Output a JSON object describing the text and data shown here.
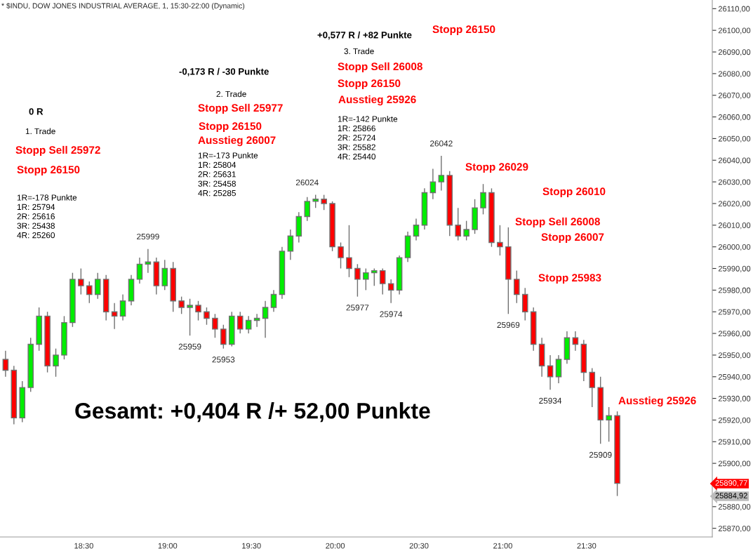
{
  "chart_data": {
    "type": "candlestick",
    "title": "* $INDU, DOW JONES INDUSTRIAL AVERAGE, 1, 15:30-22:00 (Dynamic)",
    "x": [
      18.033,
      18.083,
      18.133,
      18.183,
      18.233,
      18.283,
      18.333,
      18.383,
      18.433,
      18.483,
      18.533,
      18.583,
      18.633,
      18.683,
      18.733,
      18.783,
      18.833,
      18.883,
      18.933,
      18.983,
      19.033,
      19.083,
      19.133,
      19.183,
      19.233,
      19.283,
      19.333,
      19.383,
      19.433,
      19.483,
      19.533,
      19.583,
      19.633,
      19.683,
      19.733,
      19.783,
      19.833,
      19.883,
      19.933,
      19.983,
      20.033,
      20.083,
      20.133,
      20.183,
      20.233,
      20.283,
      20.333,
      20.383,
      20.433,
      20.483,
      20.533,
      20.583,
      20.633,
      20.683,
      20.733,
      20.783,
      20.833,
      20.883,
      20.933,
      20.983,
      21.033,
      21.083,
      21.133,
      21.183,
      21.233,
      21.283,
      21.333,
      21.383,
      21.433,
      21.483,
      21.533,
      21.583,
      21.633,
      21.683
    ],
    "ohlc": [
      [
        25948,
        25952,
        25940,
        25943
      ],
      [
        25943,
        25945,
        25918,
        25921
      ],
      [
        25921,
        25938,
        25919,
        25935
      ],
      [
        25935,
        25958,
        25933,
        25955
      ],
      [
        25955,
        25972,
        25952,
        25968
      ],
      [
        25968,
        25970,
        25942,
        25945
      ],
      [
        25945,
        25953,
        25940,
        25950
      ],
      [
        25950,
        25968,
        25948,
        25965
      ],
      [
        25965,
        25988,
        25963,
        25985
      ],
      [
        25985,
        25990,
        25978,
        25982
      ],
      [
        25982,
        25984,
        25974,
        25978
      ],
      [
        25978,
        25988,
        25976,
        25985
      ],
      [
        25985,
        25987,
        25966,
        25970
      ],
      [
        25970,
        25974,
        25962,
        25968
      ],
      [
        25968,
        25978,
        25966,
        25975
      ],
      [
        25975,
        25987,
        25973,
        25985
      ],
      [
        25985,
        25995,
        25983,
        25992
      ],
      [
        25992,
        25999,
        25988,
        25993
      ],
      [
        25993,
        25995,
        25978,
        25982
      ],
      [
        25982,
        25994,
        25980,
        25990
      ],
      [
        25990,
        25993,
        25970,
        25975
      ],
      [
        25975,
        25977,
        25969,
        25972
      ],
      [
        25972,
        25976,
        25959,
        25973
      ],
      [
        25973,
        25975,
        25966,
        25970
      ],
      [
        25970,
        25972,
        25964,
        25967
      ],
      [
        25967,
        25969,
        25958,
        25962
      ],
      [
        25962,
        25964,
        25953,
        25955
      ],
      [
        25955,
        25970,
        25954,
        25968
      ],
      [
        25968,
        25970,
        25960,
        25962
      ],
      [
        25962,
        25968,
        25960,
        25966
      ],
      [
        25966,
        25969,
        25963,
        25967
      ],
      [
        25967,
        25975,
        25958,
        25972
      ],
      [
        25972,
        25980,
        25970,
        25978
      ],
      [
        25978,
        26000,
        25976,
        25998
      ],
      [
        25998,
        26008,
        25994,
        26005
      ],
      [
        26005,
        26016,
        26002,
        26014
      ],
      [
        26014,
        26023,
        26012,
        26021
      ],
      [
        26021,
        26024,
        26018,
        26022
      ],
      [
        26022,
        26024,
        26017,
        26020
      ],
      [
        26020,
        26021,
        25998,
        26000
      ],
      [
        26000,
        26002,
        25990,
        25995
      ],
      [
        25995,
        26010,
        25986,
        25990
      ],
      [
        25990,
        25992,
        25977,
        25985
      ],
      [
        25985,
        25990,
        25980,
        25988
      ],
      [
        25988,
        25990,
        25982,
        25989
      ],
      [
        25989,
        25990,
        25978,
        25983
      ],
      [
        25983,
        25985,
        25974,
        25980
      ],
      [
        25980,
        25996,
        25978,
        25995
      ],
      [
        25995,
        26007,
        25993,
        26005
      ],
      [
        26005,
        26013,
        26003,
        26010
      ],
      [
        26010,
        26027,
        26008,
        26025
      ],
      [
        26025,
        26036,
        26022,
        26030
      ],
      [
        26030,
        26042,
        26026,
        26033
      ],
      [
        26033,
        26035,
        26005,
        26010
      ],
      [
        26010,
        26018,
        26003,
        26005
      ],
      [
        26005,
        26012,
        26003,
        26008
      ],
      [
        26008,
        26022,
        26006,
        26018
      ],
      [
        26018,
        26029,
        26015,
        26025
      ],
      [
        26025,
        26027,
        26000,
        26002
      ],
      [
        26002,
        26010,
        25996,
        26000
      ],
      [
        26000,
        26009,
        25969,
        25985
      ],
      [
        25985,
        25989,
        25974,
        25978
      ],
      [
        25978,
        25981,
        25966,
        25970
      ],
      [
        25970,
        25972,
        25952,
        25955
      ],
      [
        25955,
        25958,
        25940,
        25945
      ],
      [
        25945,
        25950,
        25934,
        25940
      ],
      [
        25940,
        25950,
        25937,
        25948
      ],
      [
        25948,
        25961,
        25946,
        25958
      ],
      [
        25958,
        25961,
        25952,
        25955
      ],
      [
        25955,
        25957,
        25938,
        25942
      ],
      [
        25942,
        25944,
        25926,
        25935
      ],
      [
        25935,
        25940,
        25909,
        25920
      ],
      [
        25920,
        25926,
        25910,
        25922
      ],
      [
        25922,
        25924,
        25884.92,
        25890.77
      ]
    ],
    "colors": [
      "#ff0000",
      "#ff0000",
      "#00ee00",
      "#00ee00",
      "#00ee00",
      "#ff0000",
      "#00ee00",
      "#00ee00",
      "#00ee00",
      "#ff0000",
      "#ff0000",
      "#00ee00",
      "#ff0000",
      "#ff0000",
      "#00ee00",
      "#00ee00",
      "#00ee00",
      "#00ee00",
      "#ff0000",
      "#00ee00",
      "#ff0000",
      "#ff0000",
      "#00ee00",
      "#ff0000",
      "#ff0000",
      "#ff0000",
      "#ff0000",
      "#00ee00",
      "#ff0000",
      "#00ee00",
      "#00ee00",
      "#00ee00",
      "#00ee00",
      "#00ee00",
      "#00ee00",
      "#00ee00",
      "#00ee00",
      "#00ee00",
      "#ff0000",
      "#ff0000",
      "#ff0000",
      "#ff0000",
      "#ff0000",
      "#00ee00",
      "#00ee00",
      "#ff0000",
      "#ff0000",
      "#00ee00",
      "#00ee00",
      "#00ee00",
      "#00ee00",
      "#00ee00",
      "#00ee00",
      "#ff0000",
      "#ff0000",
      "#00ee00",
      "#00ee00",
      "#00ee00",
      "#ff0000",
      "#ff0000",
      "#ff0000",
      "#ff0000",
      "#ff0000",
      "#ff0000",
      "#ff0000",
      "#ff0000",
      "#00ee00",
      "#00ee00",
      "#ff0000",
      "#ff0000",
      "#ff0000",
      "#ff0000",
      "#00ee00",
      "#ff0000"
    ],
    "xlim": [
      18.0,
      22.25
    ],
    "xticks": [
      {
        "value": 18.5,
        "label": "18:30"
      },
      {
        "value": 19.0,
        "label": "19:00"
      },
      {
        "value": 19.5,
        "label": "19:30"
      },
      {
        "value": 20.0,
        "label": "20:00"
      },
      {
        "value": 20.5,
        "label": "20:30"
      },
      {
        "value": 21.0,
        "label": "21:00"
      },
      {
        "value": 21.5,
        "label": "21:30"
      }
    ],
    "ylim": [
      25866,
      26114
    ],
    "yticks": [
      {
        "value": 25870,
        "label": "25870,00"
      },
      {
        "value": 25880,
        "label": "25880,00"
      },
      {
        "value": 25890,
        "label": null
      },
      {
        "value": 25900,
        "label": "25900,00"
      },
      {
        "value": 25910,
        "label": "25910,00"
      },
      {
        "value": 25920,
        "label": "25920,00"
      },
      {
        "value": 25930,
        "label": "25930,00"
      },
      {
        "value": 25940,
        "label": "25940,00"
      },
      {
        "value": 25950,
        "label": "25950,00"
      },
      {
        "value": 25960,
        "label": "25960,00"
      },
      {
        "value": 25970,
        "label": "25970,00"
      },
      {
        "value": 25980,
        "label": "25980,00"
      },
      {
        "value": 25990,
        "label": "25990,00"
      },
      {
        "value": 26000,
        "label": "26000,00"
      },
      {
        "value": 26010,
        "label": "26010,00"
      },
      {
        "value": 26020,
        "label": "26020,00"
      },
      {
        "value": 26030,
        "label": "26030,00"
      },
      {
        "value": 26040,
        "label": "26040,00"
      },
      {
        "value": 26050,
        "label": "26050,00"
      },
      {
        "value": 26060,
        "label": "26060,00"
      },
      {
        "value": 26070,
        "label": "26070,00"
      },
      {
        "value": 26080,
        "label": "26080,00"
      },
      {
        "value": 26090,
        "label": "26090,00"
      },
      {
        "value": 26100,
        "label": "26100,00"
      },
      {
        "value": 26110,
        "label": "26110,00"
      }
    ],
    "annotations": [
      {
        "text": "25999",
        "x": 18.883,
        "y": 25999
      },
      {
        "text": "25959",
        "x": 19.133,
        "y": 25959
      },
      {
        "text": "25953",
        "x": 19.333,
        "y": 25953
      },
      {
        "text": "26024",
        "x": 19.833,
        "y": 26024
      },
      {
        "text": "25977",
        "x": 20.133,
        "y": 25977
      },
      {
        "text": "25974",
        "x": 20.333,
        "y": 25974
      },
      {
        "text": "26042",
        "x": 20.633,
        "y": 26042
      },
      {
        "text": "25969",
        "x": 21.033,
        "y": 25969
      },
      {
        "text": "25934",
        "x": 21.283,
        "y": 25934
      },
      {
        "text": "25909",
        "x": 21.583,
        "y": 25909
      },
      "25890,77",
      "25884,92",
      "0 R",
      "1. Trade",
      "Stopp Sell 25972",
      "Stopp 26150",
      "1R=-178 Punkte\n1R: 25794\n2R: 25616\n3R: 25438\n4R: 25260",
      "-0,173 R / -30 Punkte",
      "2. Trade",
      "Stopp Sell 25977",
      "Stopp 26150",
      "Ausstieg 26007",
      "1R=-173 Punkte\n1R: 25804\n2R: 25631\n3R: 25458\n4R: 25285",
      "+0,577 R / +82 Punkte",
      "Stopp 26150",
      "3. Trade",
      "Stopp Sell 26008",
      "Stopp 26150",
      "Ausstieg 25926",
      "1R=-142 Punkte\n1R: 25866\n2R: 25724\n3R: 25582\n4R: 25440",
      "Stopp 26029",
      "Stopp 26010",
      "Stopp Sell 26008",
      "Stopp 26007",
      "Stopp 25983",
      "Ausstieg 25926",
      "Gesamt: +0,404 R /+ 52,00 Punkte"
    ]
  }
}
